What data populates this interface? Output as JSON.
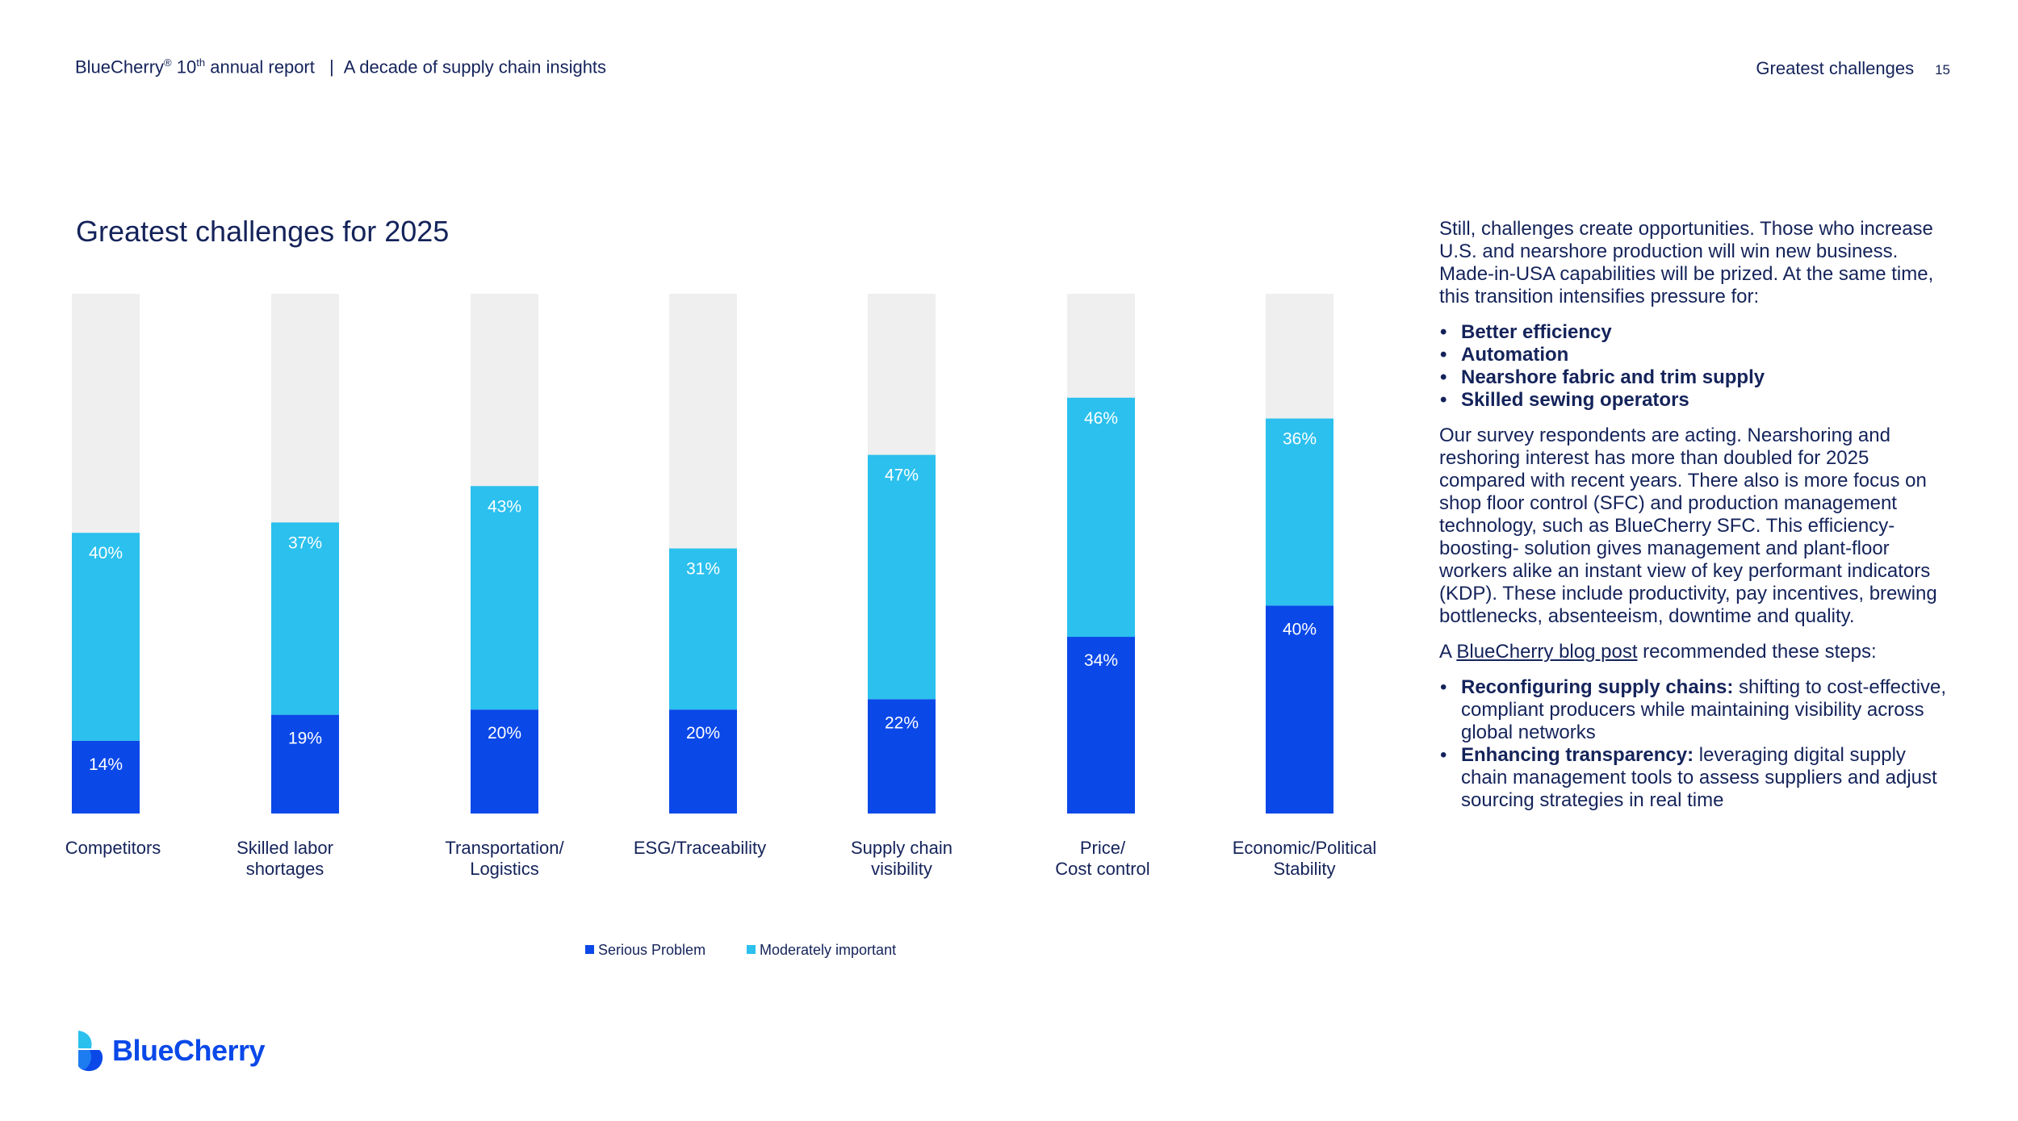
{
  "header": {
    "brand": "BlueCherry",
    "reg": "®",
    "edition_num": "10",
    "edition_suffix": "th",
    "report_label": "annual report",
    "separator": "|",
    "subtitle": "A decade of supply chain insights",
    "section": "Greatest challenges",
    "page_number": "15"
  },
  "colors": {
    "serious": "#0a48e8",
    "moderate": "#2bc0ee",
    "remainder": "#efefef",
    "text": "#14235a"
  },
  "chart_data": {
    "type": "bar",
    "stacked": true,
    "title": "Greatest challenges for 2025",
    "categories": [
      [
        "Competitors"
      ],
      [
        "Skilled labor",
        "shortages"
      ],
      [
        "Transportation/",
        "Logistics"
      ],
      [
        "ESG/Traceability"
      ],
      [
        "Supply chain",
        "visibility"
      ],
      [
        "Price/",
        "Cost control"
      ],
      [
        "Economic/Political",
        "Stability"
      ]
    ],
    "series": [
      {
        "name": "Serious Problem",
        "values": [
          14,
          19,
          20,
          20,
          22,
          34,
          40
        ],
        "labels": [
          "14%",
          "19%",
          "20%",
          "20%",
          "22%",
          "34%",
          "40%"
        ]
      },
      {
        "name": "Moderately important",
        "values": [
          40,
          37,
          43,
          31,
          47,
          46,
          36
        ],
        "labels": [
          "40%",
          "37%",
          "43%",
          "31%",
          "47%",
          "46%",
          "36%"
        ]
      }
    ],
    "ylim": [
      0,
      100
    ],
    "xlabel": "",
    "ylabel": "",
    "legend_position": "bottom-center"
  },
  "sidebar": {
    "intro": "Still, challenges create opportunities. Those who increase U.S. and nearshore production will win new business. Made-in-USA capabilities will be prized. At the same time, this transition intensifies pressure for:",
    "pressures": [
      "Better efficiency",
      "Automation",
      "Nearshore fabric and trim supply",
      "Skilled sewing operators"
    ],
    "survey": "Our survey respondents are acting. Nearshoring and reshoring interest has more than doubled for 2025 compared with recent years. There also is more focus on shop floor control (SFC) and production management technology, such as BlueCherry SFC. This efficiency-boosting- solution gives management and plant-floor workers alike an instant view of key performant indicators (KDP). These include productivity, pay incentives, brewing bottlenecks, absenteeism, downtime and quality.",
    "blog_prefix": "A ",
    "blog_link": "BlueCherry blog post",
    "blog_suffix": " recommended these steps:",
    "steps": [
      {
        "title": "Reconfiguring supply chains:",
        "text": " shifting to cost-effective, compliant producers while maintaining visibility across global networks"
      },
      {
        "title": "Enhancing transparency:",
        "text": " leveraging digital supply chain management tools to assess suppliers and adjust sourcing strategies in real time"
      }
    ]
  },
  "footer": {
    "logo_text": "BlueCherry"
  }
}
